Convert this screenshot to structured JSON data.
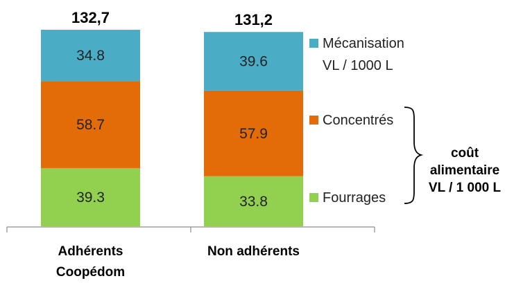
{
  "chart_data": {
    "type": "bar",
    "stacked": true,
    "categories": [
      [
        "Adhérents",
        "Coopédom"
      ],
      [
        "Non adhérents"
      ]
    ],
    "series": [
      {
        "name": "Fourrages",
        "values": [
          39.3,
          33.8
        ],
        "labels": [
          "39.3",
          "33.8"
        ],
        "color": "#92d050"
      },
      {
        "name": "Concentrés",
        "values": [
          58.7,
          57.9
        ],
        "labels": [
          "58.7",
          "57.9"
        ],
        "color": "#e36c09"
      },
      {
        "name": "Mécanisation",
        "name_line2": "VL / 1000 L",
        "values": [
          34.8,
          39.6
        ],
        "labels": [
          "34.8",
          "39.6"
        ],
        "color": "#4bacc6"
      }
    ],
    "totals": [
      "132,7",
      "131,2"
    ],
    "bracket_note": [
      "coût",
      "alimentaire",
      "VL / 1 000 L"
    ],
    "legend_position": "right",
    "ylim": [
      0,
      140
    ],
    "grid": false
  }
}
